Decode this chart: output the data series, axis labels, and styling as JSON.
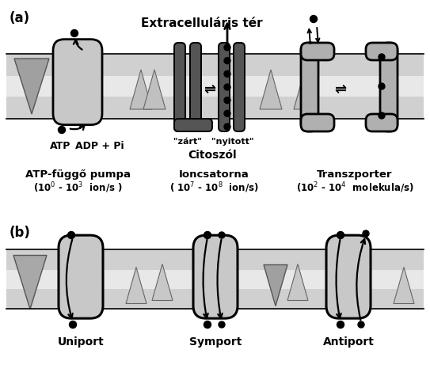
{
  "label_a": "(a)",
  "label_b": "(b)",
  "extracellular": "Extracelluláris tér",
  "citoszol": "Citoszól",
  "zart": "\"zárt\"",
  "nyitott": "\"nyitott\"",
  "atp": "ATP",
  "adp": "ADP + Pi",
  "pump_name": "ATP-függő pumpa",
  "pump_rate": "(10$^0$ - 10$^3$  ion/s )",
  "channel_name": "Ioncsatorna",
  "channel_rate": "( 10$^7$ - 10$^8$  ion/s)",
  "trans_name": "Transzporter",
  "trans_rate": "(10$^2$ - 10$^4$  molekula/s)",
  "uniport": "Uniport",
  "symport": "Symport",
  "antiport": "Antiport",
  "mem_fill": "#d0d0d0",
  "mem_light": "#e8e8e8",
  "pump_fill": "#c8c8c8",
  "channel_fill": "#555555",
  "trans_fill": "#b0b0b0",
  "tri_inv_fill": "#a8a8a8",
  "tri_up_fill": "#c0c0c0",
  "tri_dark_fill": "#909090",
  "bg": "#ffffff"
}
